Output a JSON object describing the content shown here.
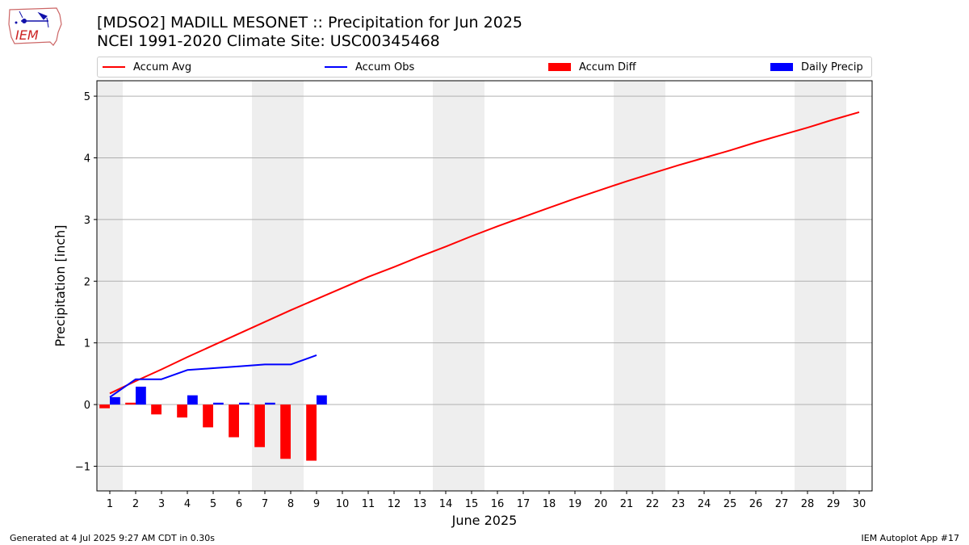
{
  "header": {
    "title_line1": "[MDSO2] MADILL MESONET :: Precipitation for Jun 2025",
    "title_line2": "NCEI 1991-2020 Climate Site: USC00345468"
  },
  "logo": {
    "text": "IEM",
    "icon": "iowa-state-map-logo-icon"
  },
  "footer": {
    "left": "Generated at 4 Jul 2025 9:27 AM CDT in 0.30s",
    "right": "IEM Autoplot App #17"
  },
  "colors": {
    "avg": "#ff0000",
    "obs": "#0000ff",
    "diff": "#ff0000",
    "daily": "#0000ff",
    "weekend_shade": "#eeeeee",
    "grid": "#b0b0b0"
  },
  "chart_data": {
    "type": "bar",
    "title": "[MDSO2] MADILL MESONET :: Precipitation for Jun 2025",
    "subtitle": "NCEI 1991-2020 Climate Site: USC00345468",
    "xlabel": "June 2025",
    "ylabel": "Precipitation [inch]",
    "ylim": [
      -1.4,
      5.25
    ],
    "xlim": [
      0.5,
      30.5
    ],
    "yticks": [
      -1,
      0,
      1,
      2,
      3,
      4,
      5
    ],
    "ytick_labels": [
      "−1",
      "0",
      "1",
      "2",
      "3",
      "4",
      "5"
    ],
    "days": [
      1,
      2,
      3,
      4,
      5,
      6,
      7,
      8,
      9,
      10,
      11,
      12,
      13,
      14,
      15,
      16,
      17,
      18,
      19,
      20,
      21,
      22,
      23,
      24,
      25,
      26,
      27,
      28,
      29,
      30
    ],
    "grid": "horizontal",
    "legend_position": "top",
    "weekend_shading": [
      [
        1,
        1
      ],
      [
        7,
        8
      ],
      [
        14,
        15
      ],
      [
        21,
        22
      ],
      [
        28,
        29
      ]
    ],
    "series": [
      {
        "name": "Accum Avg",
        "kind": "line",
        "x": [
          1,
          2,
          3,
          4,
          5,
          6,
          7,
          8,
          9,
          10,
          11,
          12,
          13,
          14,
          15,
          16,
          17,
          18,
          19,
          20,
          21,
          22,
          23,
          24,
          25,
          26,
          27,
          28,
          29,
          30
        ],
        "values": [
          0.18,
          0.38,
          0.57,
          0.77,
          0.96,
          1.15,
          1.34,
          1.53,
          1.71,
          1.89,
          2.07,
          2.23,
          2.4,
          2.56,
          2.73,
          2.89,
          3.04,
          3.19,
          3.34,
          3.48,
          3.62,
          3.75,
          3.88,
          4.0,
          4.12,
          4.25,
          4.37,
          4.49,
          4.62,
          4.74
        ]
      },
      {
        "name": "Accum Obs",
        "kind": "line",
        "x": [
          1,
          2,
          3,
          4,
          5,
          6,
          7,
          8,
          9
        ],
        "values": [
          0.12,
          0.41,
          0.41,
          0.56,
          0.59,
          0.62,
          0.65,
          0.65,
          0.8
        ]
      },
      {
        "name": "Accum Diff",
        "kind": "bar",
        "x": [
          1,
          2,
          3,
          4,
          5,
          6,
          7,
          8,
          9
        ],
        "values": [
          -0.06,
          0.03,
          -0.16,
          -0.21,
          -0.37,
          -0.53,
          -0.69,
          -0.88,
          -0.91
        ]
      },
      {
        "name": "Daily Precip",
        "kind": "bar",
        "x": [
          1,
          2,
          3,
          4,
          5,
          6,
          7,
          8,
          9
        ],
        "values": [
          0.12,
          0.29,
          0.0,
          0.15,
          0.03,
          0.03,
          0.03,
          0.0,
          0.15
        ]
      }
    ]
  }
}
